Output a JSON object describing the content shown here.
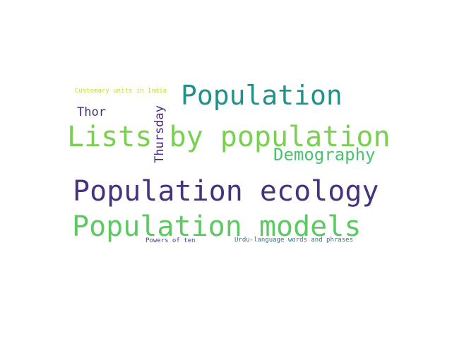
{
  "words": {
    "population_ecology": {
      "text": "Population ecology",
      "color": "#46327e"
    },
    "population_models": {
      "text": "Population models",
      "color": "#5ec962"
    },
    "lists_by_population": {
      "text": "Lists by population",
      "color": "#7ad151"
    },
    "population": {
      "text": "Population",
      "color": "#21918c"
    },
    "demography": {
      "text": "Demography",
      "color": "#4ac16d"
    },
    "thursday": {
      "text": "Thursday",
      "color": "#482878"
    },
    "thor": {
      "text": "Thor",
      "color": "#472d7b"
    },
    "customary_units": {
      "text": "Customary units in India",
      "color": "#bddf26"
    },
    "powers_of_ten": {
      "text": "Powers of ten",
      "color": "#3e4a89"
    },
    "urdu_words": {
      "text": "Urdu-language words and phrases",
      "color": "#2a788e"
    }
  }
}
